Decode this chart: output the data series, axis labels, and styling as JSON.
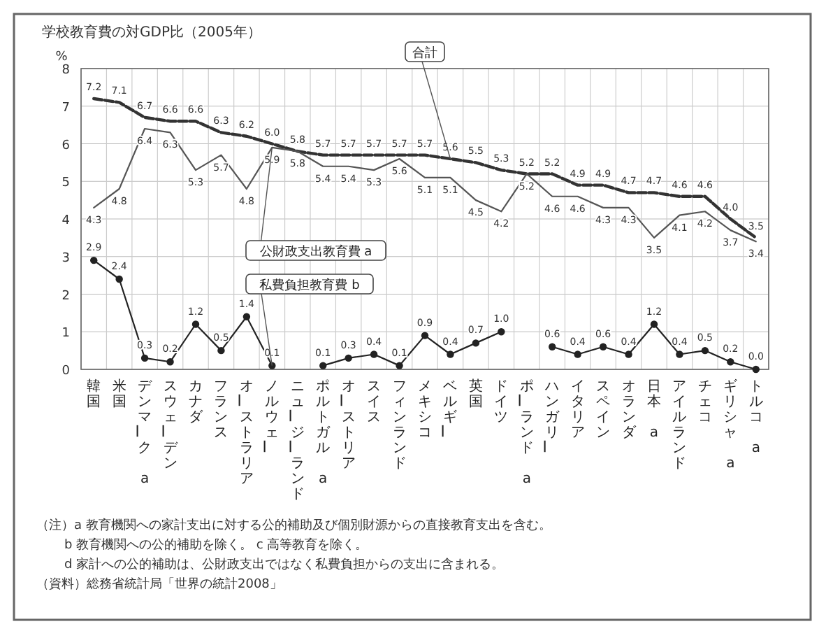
{
  "chart_data": {
    "type": "line",
    "title": "学校教育費の対GDP比（2005年）",
    "ylabel": "%",
    "categories": [
      "韓国",
      "米国",
      "デンマーク a",
      "スウェーデン",
      "カナダ",
      "フランス",
      "オーストラリア",
      "ノルウェー",
      "ニュージーランド",
      "ポルトガル a",
      "オーストリア",
      "スイス",
      "フィンランド",
      "メキシコ",
      "ベルギー",
      "英国",
      "ドイツ",
      "ポーランド a",
      "ハンガリー",
      "イタリア",
      "スペイン",
      "オランダ",
      "日本 a",
      "アイルランド",
      "チェコ",
      "ギリシャ a",
      "トルコ a"
    ],
    "ylim": [
      0,
      8
    ],
    "yticks": [
      0,
      1,
      2,
      3,
      4,
      5,
      6,
      7,
      8
    ],
    "grid": true,
    "series": [
      {
        "name": "合計",
        "color": "#333333",
        "line_style": "dashed",
        "marker": "none",
        "values": [
          7.2,
          7.1,
          6.7,
          6.6,
          6.6,
          6.3,
          6.2,
          6.0,
          5.8,
          5.7,
          5.7,
          5.7,
          5.7,
          5.7,
          5.6,
          5.5,
          5.3,
          5.2,
          5.2,
          4.9,
          4.9,
          4.7,
          4.7,
          4.6,
          4.6,
          4.0,
          3.5
        ],
        "value_labels": [
          "7.2",
          "7.1",
          "6.7",
          "6.6",
          "6.6",
          "6.3",
          "6.2",
          "6.0",
          "5.8",
          "5.7",
          "5.7",
          "5.7",
          "5.7",
          "5.7",
          "5.6",
          "5.5",
          "5.3",
          "5.2",
          "5.2",
          "4.9",
          "4.9",
          "4.7",
          "4.7",
          "4.6",
          "4.6",
          "4.0",
          "3.5"
        ]
      },
      {
        "name": "公財政支出教育費 a",
        "color": "#555555",
        "line_style": "solid",
        "marker": "none",
        "values": [
          4.3,
          4.8,
          6.4,
          6.3,
          5.3,
          5.7,
          4.8,
          5.9,
          5.8,
          5.4,
          5.4,
          5.3,
          5.6,
          5.1,
          5.1,
          4.5,
          4.2,
          5.2,
          4.6,
          4.6,
          4.3,
          4.3,
          3.5,
          4.1,
          4.2,
          3.7,
          3.4
        ],
        "value_labels": [
          "4.3",
          "4.8",
          "6.4",
          "6.3",
          "5.3",
          "5.7",
          "4.8",
          "5.9",
          "5.8",
          "5.4",
          "5.4",
          "5.3",
          "5.6",
          "5.1",
          "5.1",
          "4.5",
          "4.2",
          "5.2",
          "4.6",
          "4.6",
          "4.3",
          "4.3",
          "3.5",
          "4.1",
          "4.2",
          "3.7",
          "3.4"
        ]
      },
      {
        "name": "私費負担教育費 b",
        "color": "#222222",
        "line_style": "solid",
        "marker": "circle",
        "values": [
          2.9,
          2.4,
          0.3,
          0.2,
          1.2,
          0.5,
          1.4,
          0.1,
          null,
          0.1,
          0.3,
          0.4,
          0.1,
          0.9,
          0.4,
          0.7,
          1.0,
          null,
          0.6,
          0.4,
          0.6,
          0.4,
          1.2,
          0.4,
          0.5,
          0.2,
          0.0
        ],
        "value_labels": [
          "2.9",
          "2.4",
          "0.3",
          "0.2",
          "1.2",
          "0.5",
          "1.4",
          "0.1",
          null,
          "0.1",
          "0.3",
          "0.4",
          "0.1",
          "0.9",
          "0.4",
          "0.7",
          "1.0",
          null,
          "0.6",
          "0.4",
          "0.6",
          "0.4",
          "1.2",
          "0.4",
          "0.5",
          "0.2",
          "0.0"
        ]
      }
    ],
    "annotations": [
      "（注）a 教育機関への家計支出に対する公的補助及び個別財源からの直接教育支出を含む。",
      "b 教育機関への公的補助を除く。 c 高等教育を除く。",
      "d 家計への公的補助は、公財政支出ではなく私費負担からの支出に含まれる。",
      "（資料）総務省統計局「世界の統計2008」"
    ]
  }
}
